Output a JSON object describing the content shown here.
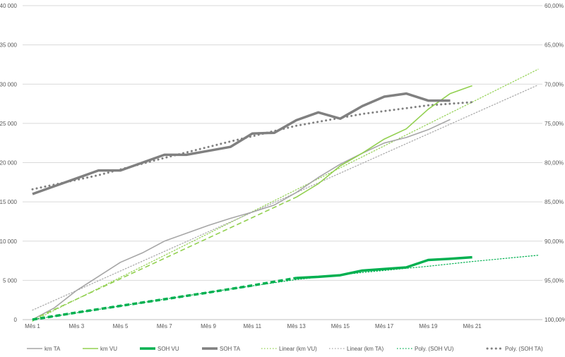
{
  "chart_data": {
    "type": "line",
    "categories_left": [
      "Mês 1",
      "Mês 3",
      "Mês 5",
      "Mês 7",
      "Mês 9",
      "Mês 11",
      "Mês 13",
      "Mês 15",
      "Mês 17",
      "Mês 19",
      "Mês 21"
    ],
    "x_tick_labels": [
      "Mês 1",
      "Mês 3",
      "Mês 5",
      "Mês 7",
      "Mês 9",
      "Mês 11",
      "Mês 13",
      "Mês 15",
      "Mês 17",
      "Mês 19",
      "Mês 21"
    ],
    "x_range_months": [
      1,
      24
    ],
    "y_left": {
      "ylim": [
        0,
        40000
      ],
      "ticks": [
        "0",
        "5 000",
        "10 000",
        "15 000",
        "20 000",
        "25 000",
        "30 000",
        "35 000",
        "40 000"
      ]
    },
    "y_right": {
      "ylim": [
        100,
        60
      ],
      "ticks": [
        "100,00%",
        "95,00%",
        "90,00%",
        "85,00%",
        "80,00%",
        "75,00%",
        "70,00%",
        "65,00%",
        "60,00%"
      ]
    },
    "grid": true,
    "legend_position": "bottom",
    "legend": [
      {
        "name": "km TA",
        "color": "#a6a6a6",
        "style": "solid",
        "width": 1.6
      },
      {
        "name": "km VU",
        "color": "#92d050",
        "style": "solid",
        "width": 1.6
      },
      {
        "name": "SOH VU",
        "color": "#00b050",
        "style": "solid",
        "width": 3.5
      },
      {
        "name": "SOH TA",
        "color": "#808080",
        "style": "solid",
        "width": 3.5
      },
      {
        "name": "Linear (km VU)",
        "color": "#92d050",
        "style": "dotted",
        "width": 1.2
      },
      {
        "name": "Linear (km TA)",
        "color": "#a6a6a6",
        "style": "dotted",
        "width": 1.2
      },
      {
        "name": "Poly. (SOH VU)",
        "color": "#00b050",
        "style": "dotted",
        "width": 1.2
      },
      {
        "name": "Poly. (SOH TA)",
        "color": "#808080",
        "style": "dotted",
        "width": 3
      }
    ],
    "series": [
      {
        "name": "km TA",
        "axis": "left",
        "color": "#a6a6a6",
        "x": [
          1,
          2,
          3,
          4,
          5,
          6,
          7,
          8,
          9,
          10,
          11,
          12,
          13,
          14,
          15,
          16,
          17,
          18,
          19,
          20
        ],
        "values": [
          0,
          1500,
          3700,
          5500,
          7300,
          8500,
          10000,
          11000,
          12000,
          12900,
          13700,
          14600,
          16200,
          18100,
          19800,
          21200,
          22500,
          23200,
          24200,
          25500
        ]
      },
      {
        "name": "km VU",
        "axis": "left",
        "color": "#92d050",
        "x": [
          1,
          3,
          5,
          7,
          9,
          11,
          13,
          14,
          15,
          16,
          17,
          18,
          19,
          20,
          21
        ],
        "values": [
          0,
          2600,
          5200,
          7800,
          10400,
          13000,
          15600,
          17300,
          19600,
          21200,
          23000,
          24300,
          26800,
          28800,
          29800
        ],
        "dashed_until_x": 13
      },
      {
        "name": "SOH VU",
        "axis": "right",
        "color": "#00b050",
        "x": [
          1,
          3,
          5,
          7,
          9,
          11,
          13,
          14,
          15,
          16,
          17,
          18,
          19,
          20,
          21
        ],
        "values": [
          100,
          99.1,
          98.25,
          97.4,
          96.55,
          95.65,
          94.7,
          94.55,
          94.35,
          93.75,
          93.55,
          93.35,
          92.4,
          92.25,
          92.05
        ],
        "dashed_until_x": 13
      },
      {
        "name": "SOH TA",
        "axis": "right",
        "color": "#808080",
        "x": [
          1,
          2,
          3,
          4,
          5,
          6,
          7,
          8,
          9,
          10,
          11,
          12,
          13,
          14,
          15,
          16,
          17,
          18,
          19,
          20
        ],
        "values": [
          84,
          83,
          82,
          81,
          81,
          80,
          79,
          79,
          78.5,
          78,
          76.3,
          76.2,
          74.6,
          73.6,
          74.4,
          72.8,
          71.6,
          71.2,
          72.1,
          72.1
        ]
      }
    ],
    "trendlines": [
      {
        "name": "Linear (km VU)",
        "axis": "left",
        "color": "#92d050",
        "x": [
          1,
          24
        ],
        "values": [
          -200,
          31900
        ]
      },
      {
        "name": "Linear (km TA)",
        "axis": "left",
        "color": "#a6a6a6",
        "x": [
          1,
          24
        ],
        "values": [
          1200,
          29900
        ]
      },
      {
        "name": "Poly. (SOH VU)",
        "axis": "right",
        "color": "#00b050",
        "x": [
          1,
          4,
          7,
          10,
          13,
          16,
          19,
          21,
          24
        ],
        "values": [
          100,
          98.7,
          97.4,
          96.1,
          94.9,
          94.0,
          93.2,
          92.6,
          91.8
        ]
      },
      {
        "name": "Poly. (SOH TA)",
        "axis": "right",
        "color": "#808080",
        "x": [
          1,
          4,
          7,
          10,
          13,
          16,
          19,
          21
        ],
        "values": [
          83.4,
          81.6,
          79.4,
          77.3,
          75.3,
          73.8,
          72.7,
          72.3
        ]
      }
    ]
  }
}
